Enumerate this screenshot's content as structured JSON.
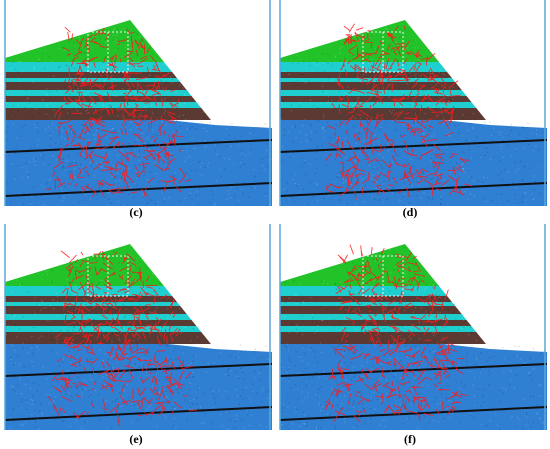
{
  "figure": {
    "panels": [
      {
        "label": "(c)"
      },
      {
        "label": "(d)"
      },
      {
        "label": "(e)"
      },
      {
        "label": "(f)"
      }
    ],
    "colors": {
      "background": "#ffffff",
      "frame_line": "#5aa7d8",
      "top_layer": "#22c229",
      "cyan_band": "#1fcfcf",
      "brown_band": "#5c3a34",
      "base_layer": "#2f7fd2",
      "fracture": "#ff1a1a",
      "black_line": "#101010"
    }
  }
}
